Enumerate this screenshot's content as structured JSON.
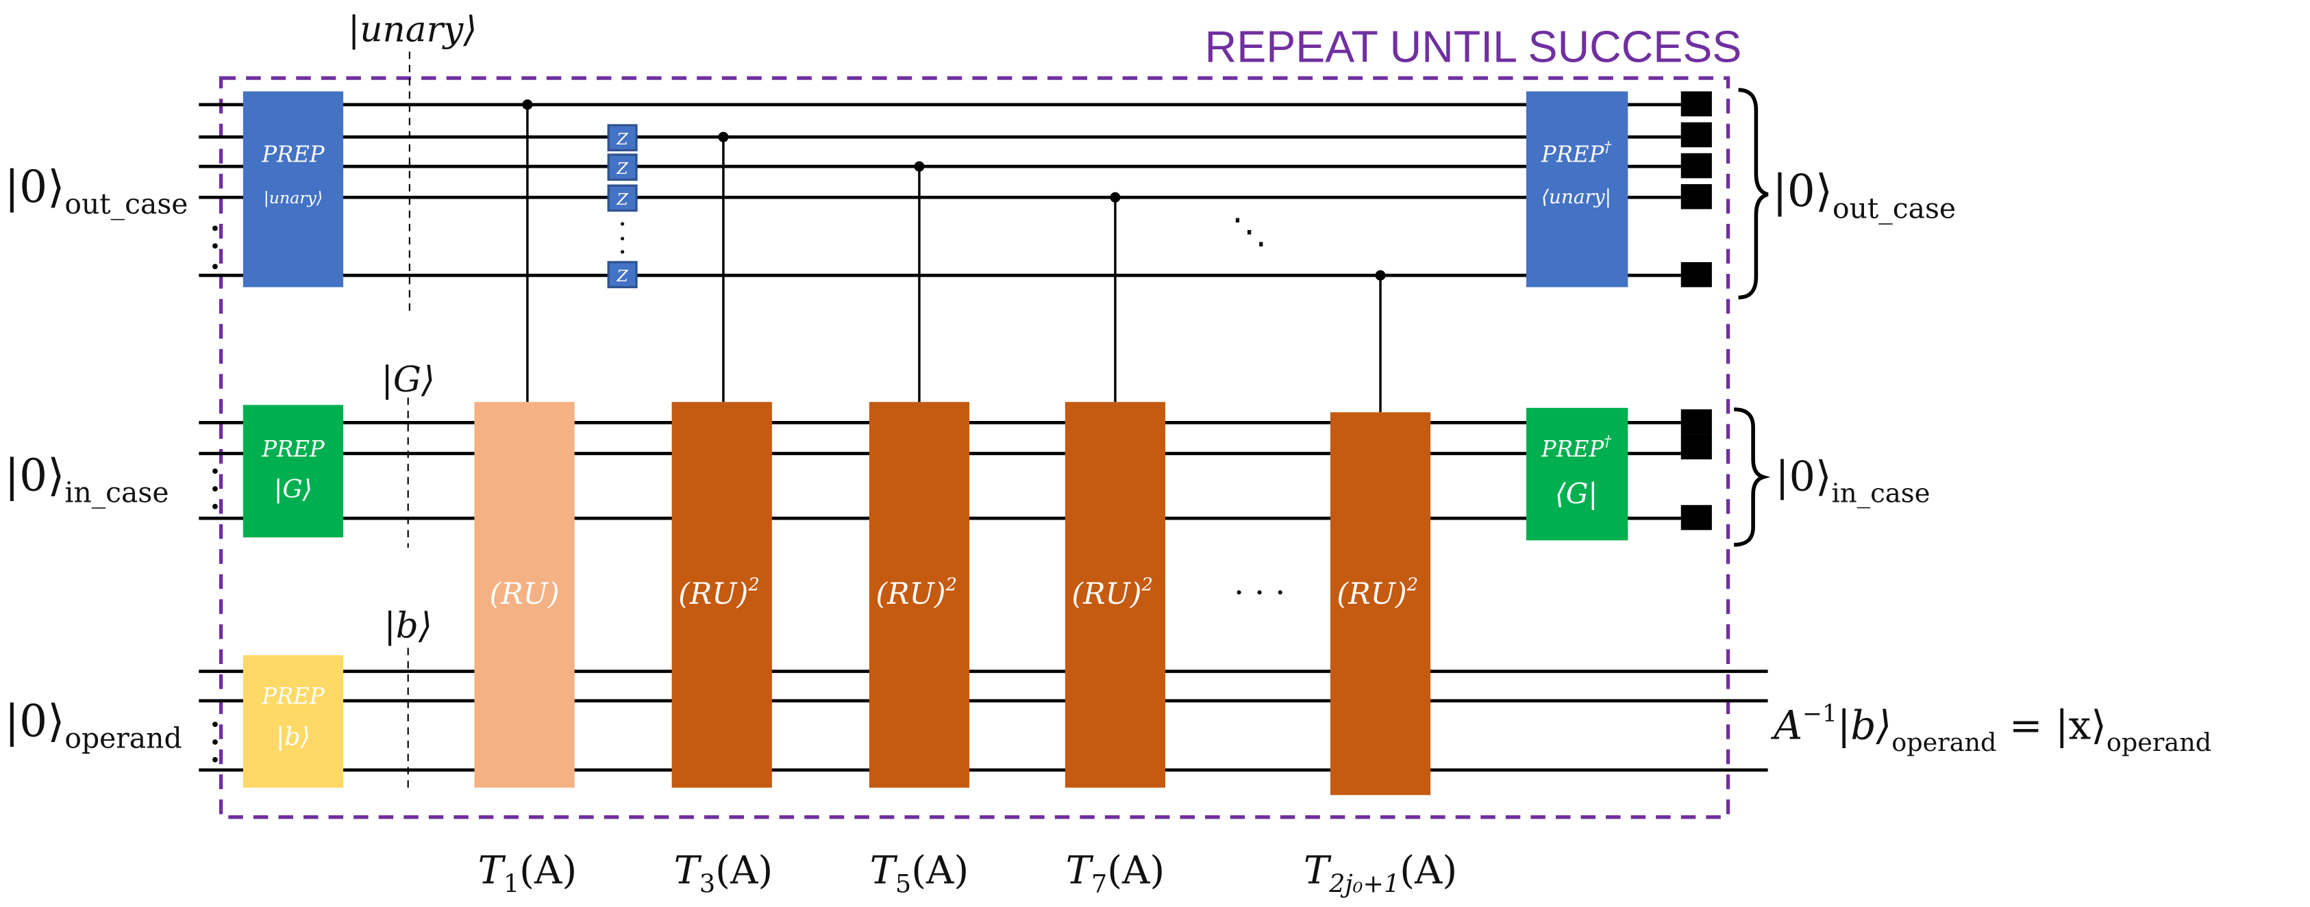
{
  "title": "REPEAT UNTIL SUCCESS",
  "colors": {
    "frame": "#7030A0",
    "prep_unary": "#4472C4",
    "prep_g": "#00B050",
    "prep_b": "#FFD966",
    "ru_first": "#F4B183",
    "ru_squared": "#C55A11",
    "z_gate": "#4472C4"
  },
  "registers": {
    "out_case": {
      "ket": "|0⟩",
      "sub": "out_case"
    },
    "in_case": {
      "ket": "|0⟩",
      "sub": "in_case"
    },
    "operand": {
      "ket": "|0⟩",
      "sub": "operand"
    }
  },
  "state_labels": {
    "unary": "|unary⟩",
    "g": "|G⟩",
    "b": "|b⟩"
  },
  "gates": {
    "prep_unary": {
      "name": "PREP",
      "arg": "|unary⟩"
    },
    "prep_g": {
      "name": "PREP",
      "arg": "|G⟩"
    },
    "prep_b": {
      "name": "PREP",
      "arg": "|b⟩"
    },
    "prep_unary_dag": {
      "name": "PREP",
      "dag": "†",
      "arg": "⟨unary|"
    },
    "prep_g_dag": {
      "name": "PREP",
      "dag": "†",
      "arg": "⟨G|"
    },
    "z": "Z",
    "ru_first": "(RU)",
    "ru_squared": {
      "base": "(RU)",
      "exp": "2"
    }
  },
  "ellipsis": {
    "diag": "⋱",
    "horiz": "· · ·"
  },
  "outputs": {
    "out_case": {
      "ket": "|0⟩",
      "sub": "out_case"
    },
    "in_case": {
      "ket": "|0⟩",
      "sub": "in_case"
    },
    "operand": {
      "lhs": "A",
      "inv": "−1",
      "ket_b": "|b⟩",
      "sub1": "operand",
      "eq": " = |x⟩",
      "sub2": "operand"
    }
  },
  "steps": [
    {
      "T": "T",
      "sub": "1",
      "arg": "(A)"
    },
    {
      "T": "T",
      "sub": "3",
      "arg": "(A)"
    },
    {
      "T": "T",
      "sub": "5",
      "arg": "(A)"
    },
    {
      "T": "T",
      "sub": "7",
      "arg": "(A)"
    },
    {
      "T": "T",
      "sub": "2j₀+1",
      "arg": "(A)"
    }
  ]
}
